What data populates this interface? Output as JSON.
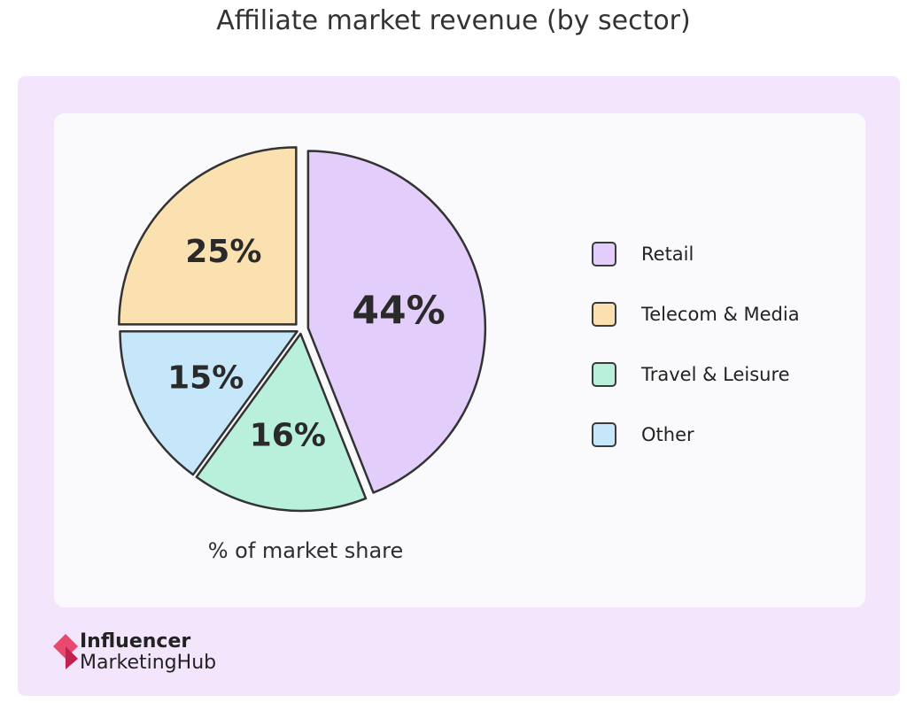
{
  "title": "Affiliate market revenue (by sector)",
  "chart_data": {
    "type": "pie",
    "title": "Affiliate market revenue (by sector)",
    "subtitle": "% of market share",
    "unit": "%",
    "slices": [
      {
        "name": "Retail",
        "value": 44,
        "label": "44%",
        "color": "#e2cdfb"
      },
      {
        "name": "Travel & Leisure",
        "value": 16,
        "label": "16%",
        "color": "#b8f0dc"
      },
      {
        "name": "Other",
        "value": 15,
        "label": "15%",
        "color": "#c6e6fa"
      },
      {
        "name": "Telecom & Media",
        "value": 25,
        "label": "25%",
        "color": "#fbe0b0"
      }
    ],
    "legend_position": "right"
  },
  "legend": [
    {
      "label": "Retail",
      "color": "#e2cdfb"
    },
    {
      "label": "Telecom & Media",
      "color": "#fbe0b0"
    },
    {
      "label": "Travel & Leisure",
      "color": "#b8f0dc"
    },
    {
      "label": "Other",
      "color": "#c6e6fa"
    }
  ],
  "logo": {
    "line1": "Influencer",
    "line2": "MarketingHub"
  }
}
